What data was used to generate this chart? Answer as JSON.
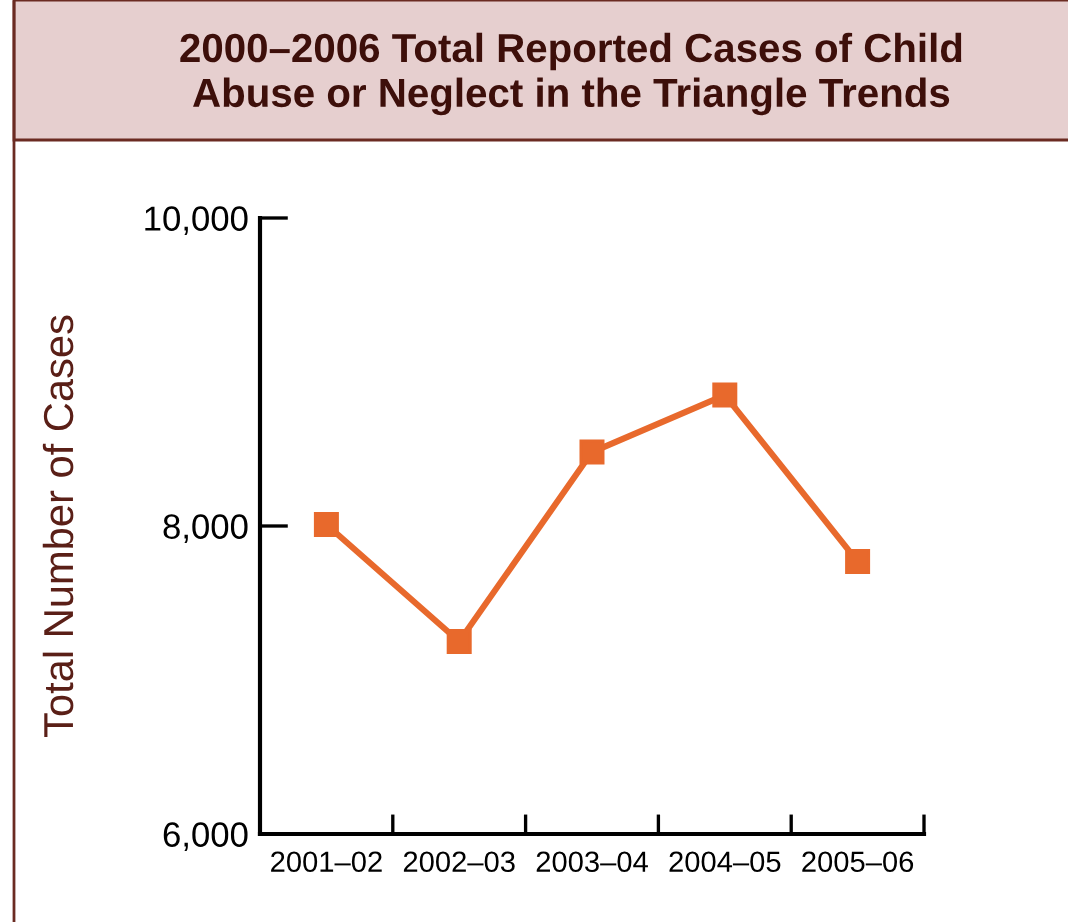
{
  "chart_data": {
    "type": "line",
    "title": "2000–2006 Total Reported Cases of Child\nAbuse or Neglect in the Triangle Trends",
    "ylabel": "Total Number of Cases",
    "categories": [
      "2001–02",
      "2002–03",
      "2003–04",
      "2004–05",
      "2005–06"
    ],
    "series": [
      {
        "color": "#e8692c",
        "values": [
          8010,
          7250,
          8480,
          8850,
          7770
        ]
      }
    ],
    "ylim": [
      6000,
      10000
    ],
    "yticks": [
      {
        "value": 6000,
        "label": "6,000"
      },
      {
        "value": 8000,
        "label": "8,000"
      },
      {
        "value": 10000,
        "label": "10,000"
      }
    ],
    "marker": "square",
    "line_style": "solid",
    "grid": false,
    "legend": false
  }
}
